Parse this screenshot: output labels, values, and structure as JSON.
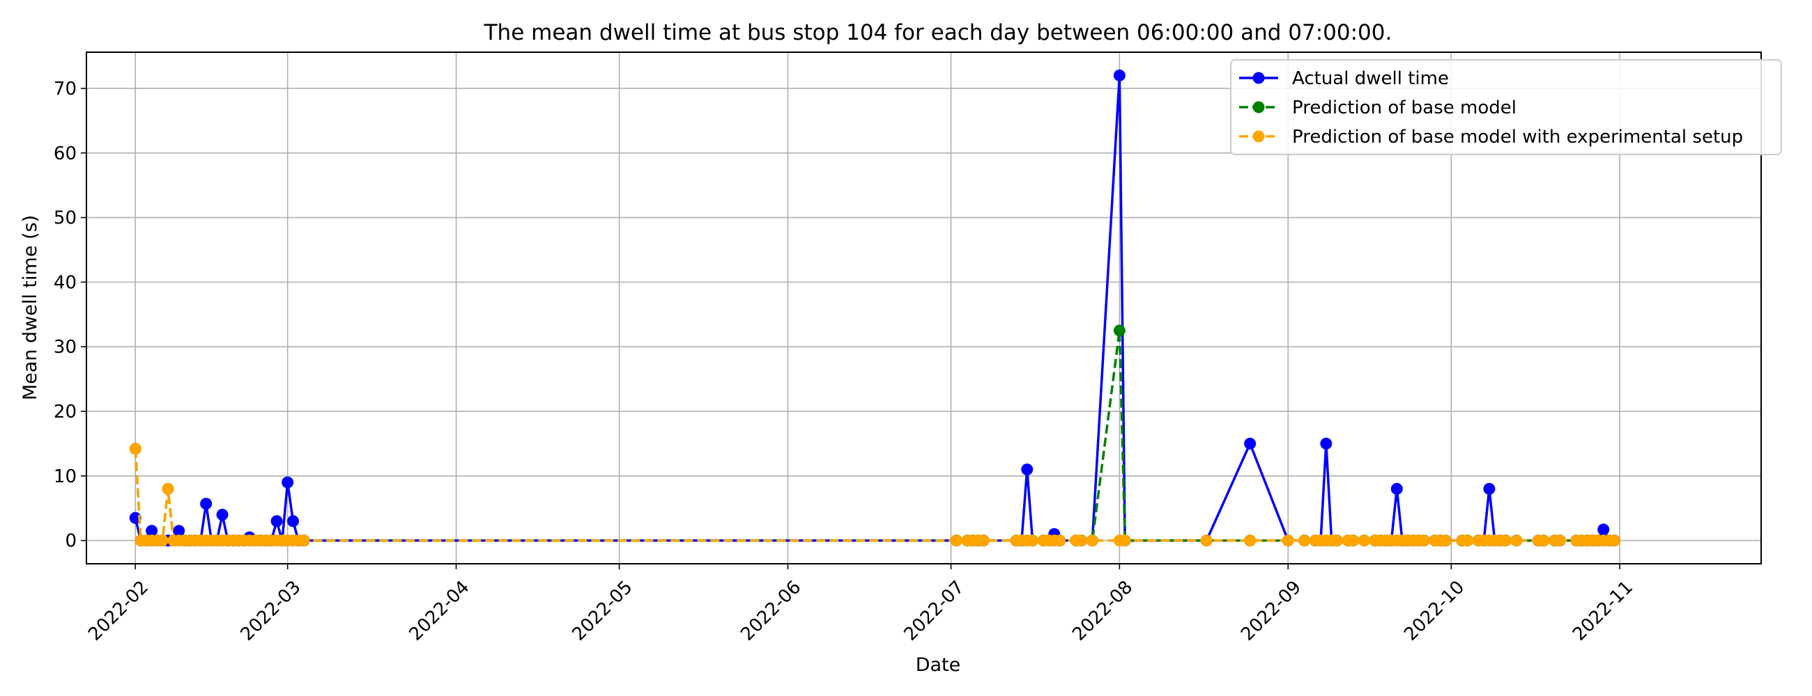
{
  "chart_data": {
    "type": "line",
    "title": "The mean dwell time at bus stop 104 for each day between 06:00:00 and 07:00:00.",
    "xlabel": "Date",
    "ylabel": "Mean dwell time (s)",
    "xlim": [
      "2022-01-23",
      "2022-11-27"
    ],
    "ylim": [
      -3.6,
      75.6
    ],
    "grid": true,
    "legend_position": "top-right",
    "x_ticks": [
      "2022-02",
      "2022-03",
      "2022-04",
      "2022-05",
      "2022-06",
      "2022-07",
      "2022-08",
      "2022-09",
      "2022-10",
      "2022-11"
    ],
    "y_ticks": [
      0,
      10,
      20,
      30,
      40,
      50,
      60,
      70
    ],
    "series": [
      {
        "name": "Actual dwell time",
        "color": "#0000ff",
        "line_style": "solid",
        "marker": "circle",
        "points": [
          [
            "2022-02-01",
            3.5
          ],
          [
            "2022-02-02",
            0
          ],
          [
            "2022-02-03",
            0
          ],
          [
            "2022-02-04",
            1.5
          ],
          [
            "2022-02-05",
            0
          ],
          [
            "2022-02-06",
            0
          ],
          [
            "2022-02-07",
            0
          ],
          [
            "2022-02-08",
            0
          ],
          [
            "2022-02-09",
            1.5
          ],
          [
            "2022-02-10",
            0
          ],
          [
            "2022-02-11",
            0
          ],
          [
            "2022-02-12",
            0
          ],
          [
            "2022-02-13",
            0
          ],
          [
            "2022-02-14",
            5.7
          ],
          [
            "2022-02-15",
            0
          ],
          [
            "2022-02-16",
            0
          ],
          [
            "2022-02-17",
            4
          ],
          [
            "2022-02-18",
            0
          ],
          [
            "2022-02-19",
            0
          ],
          [
            "2022-02-20",
            0
          ],
          [
            "2022-02-21",
            0
          ],
          [
            "2022-02-22",
            0.5
          ],
          [
            "2022-02-23",
            0
          ],
          [
            "2022-02-24",
            0
          ],
          [
            "2022-02-25",
            0
          ],
          [
            "2022-02-26",
            0
          ],
          [
            "2022-02-27",
            3
          ],
          [
            "2022-02-28",
            0
          ],
          [
            "2022-03-01",
            9
          ],
          [
            "2022-03-02",
            3
          ],
          [
            "2022-03-03",
            0
          ],
          [
            "2022-03-04",
            0
          ],
          [
            "2022-07-02",
            0
          ],
          [
            "2022-07-04",
            0
          ],
          [
            "2022-07-05",
            0
          ],
          [
            "2022-07-06",
            0
          ],
          [
            "2022-07-07",
            0
          ],
          [
            "2022-07-13",
            0
          ],
          [
            "2022-07-14",
            0
          ],
          [
            "2022-07-15",
            11
          ],
          [
            "2022-07-16",
            0
          ],
          [
            "2022-07-18",
            0
          ],
          [
            "2022-07-19",
            0
          ],
          [
            "2022-07-20",
            1
          ],
          [
            "2022-07-21",
            0
          ],
          [
            "2022-07-24",
            0
          ],
          [
            "2022-07-25",
            0
          ],
          [
            "2022-07-27",
            0
          ],
          [
            "2022-08-01",
            72
          ],
          [
            "2022-08-02",
            0
          ],
          [
            "2022-08-17",
            0
          ],
          [
            "2022-08-25",
            15
          ],
          [
            "2022-09-01",
            0
          ],
          [
            "2022-09-04",
            0
          ],
          [
            "2022-09-06",
            0
          ],
          [
            "2022-09-07",
            0
          ],
          [
            "2022-09-08",
            15
          ],
          [
            "2022-09-09",
            0
          ],
          [
            "2022-09-10",
            0
          ],
          [
            "2022-09-12",
            0
          ],
          [
            "2022-09-13",
            0
          ],
          [
            "2022-09-15",
            0
          ],
          [
            "2022-09-17",
            0
          ],
          [
            "2022-09-18",
            0
          ],
          [
            "2022-09-19",
            0
          ],
          [
            "2022-09-20",
            0
          ],
          [
            "2022-09-21",
            8
          ],
          [
            "2022-09-22",
            0
          ],
          [
            "2022-09-23",
            0
          ],
          [
            "2022-09-24",
            0
          ],
          [
            "2022-09-25",
            0
          ],
          [
            "2022-09-26",
            0
          ],
          [
            "2022-09-28",
            0
          ],
          [
            "2022-09-29",
            0
          ],
          [
            "2022-09-30",
            0
          ],
          [
            "2022-10-03",
            0
          ],
          [
            "2022-10-04",
            0
          ],
          [
            "2022-10-06",
            0
          ],
          [
            "2022-10-07",
            0
          ],
          [
            "2022-10-08",
            8
          ],
          [
            "2022-10-09",
            0
          ],
          [
            "2022-10-10",
            0
          ],
          [
            "2022-10-11",
            0
          ],
          [
            "2022-10-13",
            0
          ],
          [
            "2022-10-17",
            0
          ],
          [
            "2022-10-18",
            0
          ],
          [
            "2022-10-20",
            0
          ],
          [
            "2022-10-21",
            0
          ],
          [
            "2022-10-24",
            0
          ],
          [
            "2022-10-25",
            0
          ],
          [
            "2022-10-26",
            0
          ],
          [
            "2022-10-27",
            0
          ],
          [
            "2022-10-28",
            0
          ],
          [
            "2022-10-29",
            1.7
          ],
          [
            "2022-10-30",
            0
          ],
          [
            "2022-10-31",
            0
          ]
        ]
      },
      {
        "name": "Prediction of base model",
        "color": "#008000",
        "line_style": "dashed",
        "marker": "circle",
        "points": [
          [
            "2022-02-01",
            14.2
          ],
          [
            "2022-02-02",
            0
          ],
          [
            "2022-02-03",
            0
          ],
          [
            "2022-02-04",
            0
          ],
          [
            "2022-02-05",
            0
          ],
          [
            "2022-02-06",
            0
          ],
          [
            "2022-02-07",
            8
          ],
          [
            "2022-02-08",
            0
          ],
          [
            "2022-02-09",
            0
          ],
          [
            "2022-02-10",
            0
          ],
          [
            "2022-02-11",
            0
          ],
          [
            "2022-02-12",
            0
          ],
          [
            "2022-02-13",
            0
          ],
          [
            "2022-02-14",
            0
          ],
          [
            "2022-02-15",
            0
          ],
          [
            "2022-02-16",
            0
          ],
          [
            "2022-02-17",
            0
          ],
          [
            "2022-02-18",
            0
          ],
          [
            "2022-02-19",
            0
          ],
          [
            "2022-02-20",
            0
          ],
          [
            "2022-02-21",
            0
          ],
          [
            "2022-02-22",
            0
          ],
          [
            "2022-02-23",
            0
          ],
          [
            "2022-02-24",
            0
          ],
          [
            "2022-02-25",
            0
          ],
          [
            "2022-02-26",
            0
          ],
          [
            "2022-02-27",
            0
          ],
          [
            "2022-02-28",
            0
          ],
          [
            "2022-03-01",
            0
          ],
          [
            "2022-03-02",
            0
          ],
          [
            "2022-03-03",
            0
          ],
          [
            "2022-03-04",
            0
          ],
          [
            "2022-07-02",
            0
          ],
          [
            "2022-07-04",
            0
          ],
          [
            "2022-07-05",
            0
          ],
          [
            "2022-07-06",
            0
          ],
          [
            "2022-07-07",
            0
          ],
          [
            "2022-07-13",
            0
          ],
          [
            "2022-07-14",
            0
          ],
          [
            "2022-07-15",
            0
          ],
          [
            "2022-07-16",
            0
          ],
          [
            "2022-07-18",
            0
          ],
          [
            "2022-07-19",
            0
          ],
          [
            "2022-07-20",
            0
          ],
          [
            "2022-07-21",
            0
          ],
          [
            "2022-07-24",
            0
          ],
          [
            "2022-07-25",
            0
          ],
          [
            "2022-07-27",
            0
          ],
          [
            "2022-08-01",
            32.5
          ],
          [
            "2022-08-02",
            0
          ],
          [
            "2022-08-17",
            0
          ],
          [
            "2022-08-25",
            0
          ],
          [
            "2022-09-01",
            0
          ],
          [
            "2022-09-04",
            0
          ],
          [
            "2022-09-06",
            0
          ],
          [
            "2022-09-07",
            0
          ],
          [
            "2022-09-08",
            0
          ],
          [
            "2022-09-09",
            0
          ],
          [
            "2022-09-10",
            0
          ],
          [
            "2022-09-12",
            0
          ],
          [
            "2022-09-13",
            0
          ],
          [
            "2022-09-15",
            0
          ],
          [
            "2022-09-17",
            0
          ],
          [
            "2022-09-18",
            0
          ],
          [
            "2022-09-19",
            0
          ],
          [
            "2022-09-20",
            0
          ],
          [
            "2022-09-21",
            0
          ],
          [
            "2022-09-22",
            0
          ],
          [
            "2022-09-23",
            0
          ],
          [
            "2022-09-24",
            0
          ],
          [
            "2022-09-25",
            0
          ],
          [
            "2022-09-26",
            0
          ],
          [
            "2022-09-28",
            0
          ],
          [
            "2022-09-29",
            0
          ],
          [
            "2022-09-30",
            0
          ],
          [
            "2022-10-03",
            0
          ],
          [
            "2022-10-04",
            0
          ],
          [
            "2022-10-06",
            0
          ],
          [
            "2022-10-07",
            0
          ],
          [
            "2022-10-08",
            0
          ],
          [
            "2022-10-09",
            0
          ],
          [
            "2022-10-10",
            0
          ],
          [
            "2022-10-11",
            0
          ],
          [
            "2022-10-13",
            0
          ],
          [
            "2022-10-17",
            0
          ],
          [
            "2022-10-18",
            0
          ],
          [
            "2022-10-20",
            0
          ],
          [
            "2022-10-21",
            0
          ],
          [
            "2022-10-24",
            0
          ],
          [
            "2022-10-25",
            0
          ],
          [
            "2022-10-26",
            0
          ],
          [
            "2022-10-27",
            0
          ],
          [
            "2022-10-28",
            0
          ],
          [
            "2022-10-29",
            0
          ],
          [
            "2022-10-30",
            0
          ],
          [
            "2022-10-31",
            0
          ]
        ]
      },
      {
        "name": "Prediction of base model with experimental setup",
        "color": "#ffa500",
        "line_style": "dashed",
        "marker": "circle",
        "points": [
          [
            "2022-02-01",
            14.2
          ],
          [
            "2022-02-02",
            0
          ],
          [
            "2022-02-03",
            0
          ],
          [
            "2022-02-04",
            0
          ],
          [
            "2022-02-05",
            0
          ],
          [
            "2022-02-06",
            0
          ],
          [
            "2022-02-07",
            8
          ],
          [
            "2022-02-08",
            0
          ],
          [
            "2022-02-09",
            0
          ],
          [
            "2022-02-10",
            0
          ],
          [
            "2022-02-11",
            0
          ],
          [
            "2022-02-12",
            0
          ],
          [
            "2022-02-13",
            0
          ],
          [
            "2022-02-14",
            0
          ],
          [
            "2022-02-15",
            0
          ],
          [
            "2022-02-16",
            0
          ],
          [
            "2022-02-17",
            0
          ],
          [
            "2022-02-18",
            0
          ],
          [
            "2022-02-19",
            0
          ],
          [
            "2022-02-20",
            0
          ],
          [
            "2022-02-21",
            0
          ],
          [
            "2022-02-22",
            0
          ],
          [
            "2022-02-23",
            0
          ],
          [
            "2022-02-24",
            0
          ],
          [
            "2022-02-25",
            0
          ],
          [
            "2022-02-26",
            0
          ],
          [
            "2022-02-27",
            0
          ],
          [
            "2022-02-28",
            0
          ],
          [
            "2022-03-01",
            0
          ],
          [
            "2022-03-02",
            0
          ],
          [
            "2022-03-03",
            0
          ],
          [
            "2022-03-04",
            0
          ],
          [
            "2022-07-02",
            0
          ],
          [
            "2022-07-04",
            0
          ],
          [
            "2022-07-05",
            0
          ],
          [
            "2022-07-06",
            0
          ],
          [
            "2022-07-07",
            0
          ],
          [
            "2022-07-13",
            0
          ],
          [
            "2022-07-14",
            0
          ],
          [
            "2022-07-15",
            0
          ],
          [
            "2022-07-16",
            0
          ],
          [
            "2022-07-18",
            0
          ],
          [
            "2022-07-19",
            0
          ],
          [
            "2022-07-20",
            0
          ],
          [
            "2022-07-21",
            0
          ],
          [
            "2022-07-24",
            0
          ],
          [
            "2022-07-25",
            0
          ],
          [
            "2022-07-27",
            0
          ],
          [
            "2022-08-01",
            0
          ],
          [
            "2022-08-02",
            0
          ],
          [
            "2022-08-17",
            0
          ],
          [
            "2022-08-25",
            0
          ],
          [
            "2022-09-01",
            0
          ],
          [
            "2022-09-04",
            0
          ],
          [
            "2022-09-06",
            0
          ],
          [
            "2022-09-07",
            0
          ],
          [
            "2022-09-08",
            0
          ],
          [
            "2022-09-09",
            0
          ],
          [
            "2022-09-10",
            0
          ],
          [
            "2022-09-12",
            0
          ],
          [
            "2022-09-13",
            0
          ],
          [
            "2022-09-15",
            0
          ],
          [
            "2022-09-17",
            0
          ],
          [
            "2022-09-18",
            0
          ],
          [
            "2022-09-19",
            0
          ],
          [
            "2022-09-20",
            0
          ],
          [
            "2022-09-21",
            0
          ],
          [
            "2022-09-22",
            0
          ],
          [
            "2022-09-23",
            0
          ],
          [
            "2022-09-24",
            0
          ],
          [
            "2022-09-25",
            0
          ],
          [
            "2022-09-26",
            0
          ],
          [
            "2022-09-28",
            0
          ],
          [
            "2022-09-29",
            0
          ],
          [
            "2022-09-30",
            0
          ],
          [
            "2022-10-03",
            0
          ],
          [
            "2022-10-04",
            0
          ],
          [
            "2022-10-06",
            0
          ],
          [
            "2022-10-07",
            0
          ],
          [
            "2022-10-08",
            0
          ],
          [
            "2022-10-09",
            0
          ],
          [
            "2022-10-10",
            0
          ],
          [
            "2022-10-11",
            0
          ],
          [
            "2022-10-13",
            0
          ],
          [
            "2022-10-17",
            0
          ],
          [
            "2022-10-18",
            0
          ],
          [
            "2022-10-20",
            0
          ],
          [
            "2022-10-21",
            0
          ],
          [
            "2022-10-24",
            0
          ],
          [
            "2022-10-25",
            0
          ],
          [
            "2022-10-26",
            0
          ],
          [
            "2022-10-27",
            0
          ],
          [
            "2022-10-28",
            0
          ],
          [
            "2022-10-29",
            0
          ],
          [
            "2022-10-30",
            0
          ],
          [
            "2022-10-31",
            0
          ]
        ]
      }
    ]
  }
}
